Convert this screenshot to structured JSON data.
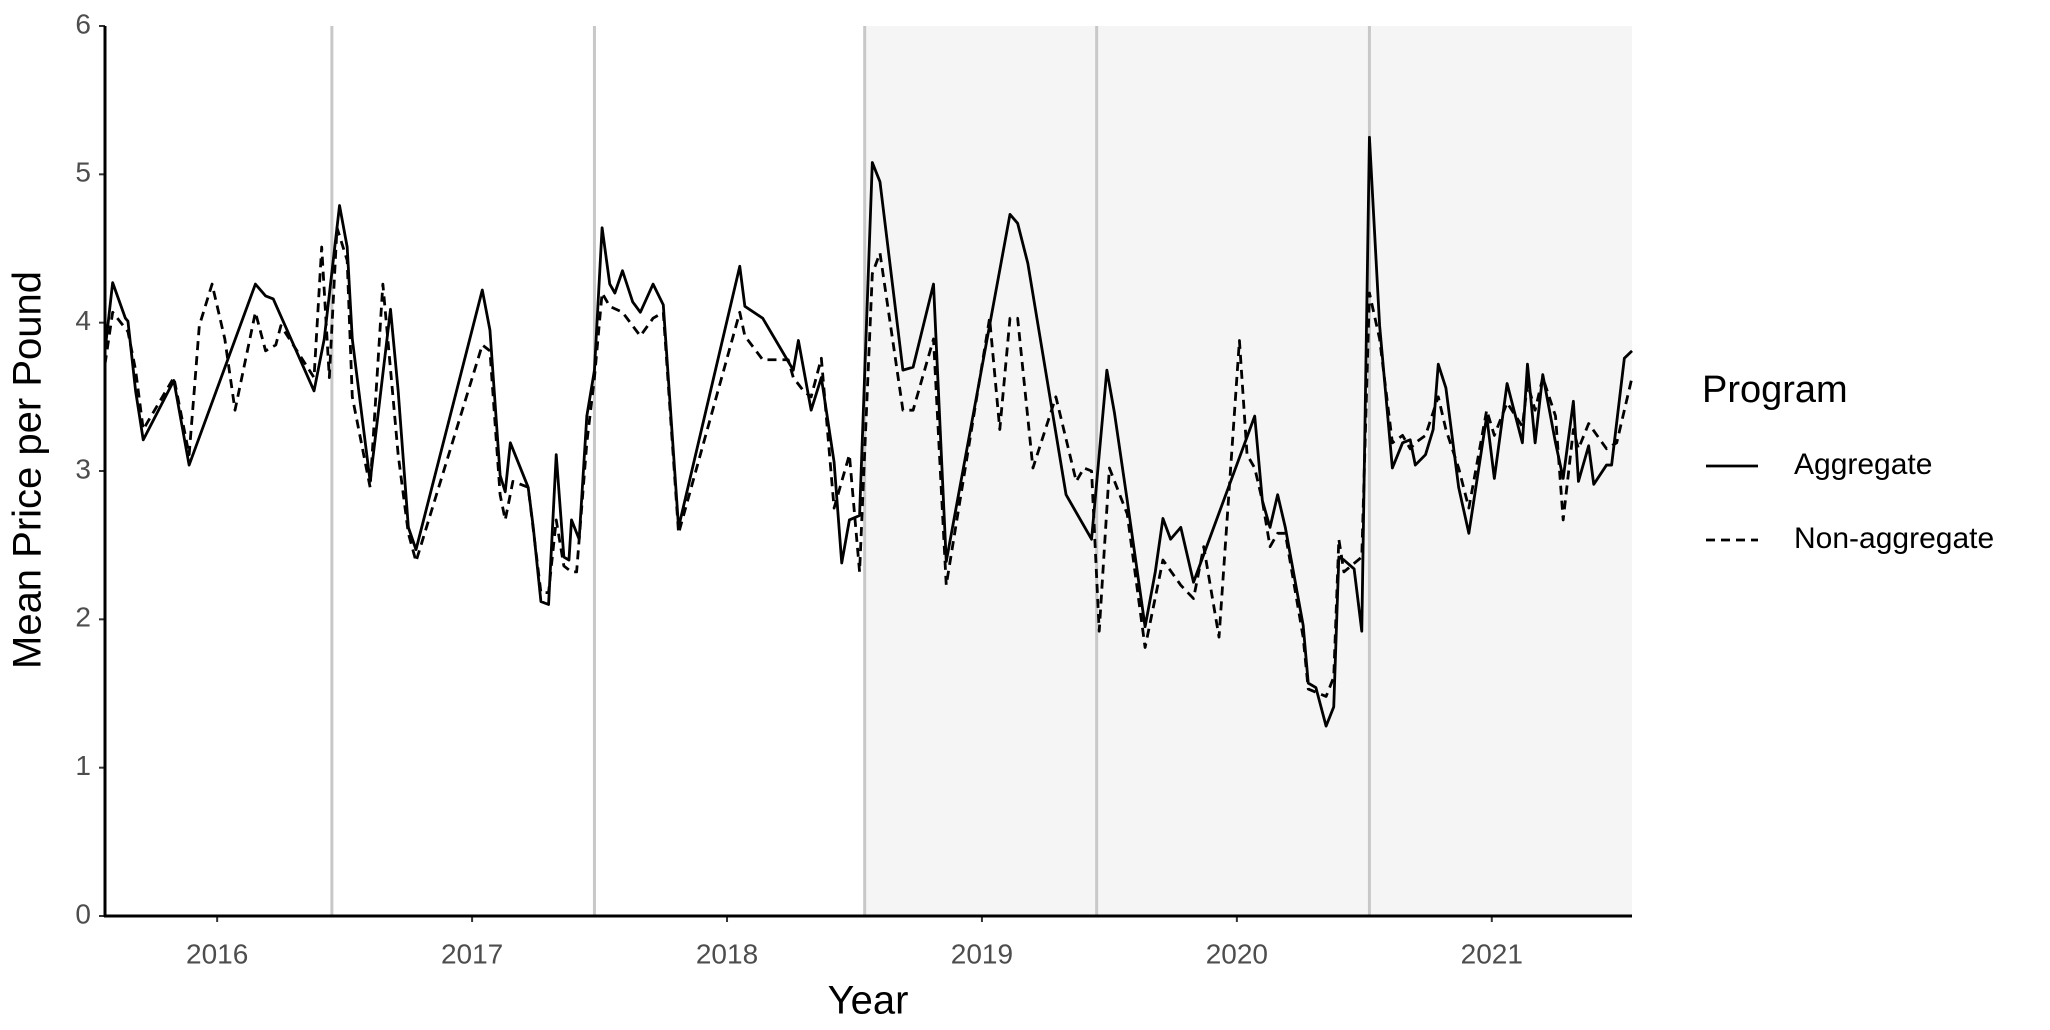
{
  "chart_data": {
    "type": "line",
    "x_label": "Year",
    "y_label": "Mean Price per Pound",
    "legend_title": "Program",
    "legend_position": "right",
    "xlim": [
      2015.56,
      2021.55
    ],
    "xticks": [
      2016,
      2017,
      2018,
      2019,
      2020,
      2021
    ],
    "ylim": [
      0,
      6
    ],
    "yticks": [
      0,
      1,
      2,
      3,
      4,
      5,
      6
    ],
    "grid": false,
    "vlines": [
      2016.45,
      2017.48,
      2018.54,
      2019.45,
      2020.52
    ],
    "vline_color": "#c8c8c8",
    "shaded_xlim": [
      2018.54,
      2021.55
    ],
    "shade_color": "#f5f5f5",
    "series": [
      {
        "name": "Aggregate",
        "color": "#000000",
        "line_style": "solid",
        "x": [
          2015.56,
          2015.59,
          2015.64,
          2015.65,
          2015.68,
          2015.71,
          2015.83,
          2015.89,
          2016.15,
          2016.19,
          2016.22,
          2016.38,
          2016.42,
          2016.48,
          2016.51,
          2016.53,
          2016.6,
          2016.68,
          2016.71,
          2016.75,
          2016.78,
          2017.04,
          2017.07,
          2017.11,
          2017.13,
          2017.15,
          2017.22,
          2017.24,
          2017.27,
          2017.3,
          2017.33,
          2017.36,
          2017.38,
          2017.39,
          2017.42,
          2017.45,
          2017.48,
          2017.51,
          2017.54,
          2017.56,
          2017.59,
          2017.63,
          2017.66,
          2017.71,
          2017.75,
          2017.81,
          2018.05,
          2018.07,
          2018.14,
          2018.26,
          2018.28,
          2018.33,
          2018.37,
          2018.42,
          2018.45,
          2018.48,
          2018.52,
          2018.57,
          2018.6,
          2018.69,
          2018.73,
          2018.81,
          2018.86,
          2019.11,
          2019.14,
          2019.18,
          2019.33,
          2019.43,
          2019.49,
          2019.52,
          2019.57,
          2019.64,
          2019.68,
          2019.71,
          2019.74,
          2019.78,
          2019.83,
          2020.07,
          2020.1,
          2020.13,
          2020.16,
          2020.19,
          2020.26,
          2020.28,
          2020.31,
          2020.35,
          2020.38,
          2020.4,
          2020.42,
          2020.46,
          2020.49,
          2020.52,
          2020.56,
          2020.61,
          2020.65,
          2020.68,
          2020.7,
          2020.74,
          2020.77,
          2020.79,
          2020.82,
          2020.87,
          2020.91,
          2020.98,
          2021.01,
          2021.06,
          2021.12,
          2021.14,
          2021.17,
          2021.2,
          2021.25,
          2021.28,
          2021.32,
          2021.34,
          2021.38,
          2021.4,
          2021.45,
          2021.47,
          2021.52,
          2021.55
        ],
        "values": [
          3.81,
          4.27,
          4.03,
          4.01,
          3.54,
          3.21,
          3.61,
          3.04,
          4.26,
          4.18,
          4.16,
          3.54,
          3.89,
          4.79,
          4.51,
          3.89,
          2.93,
          4.09,
          3.54,
          2.62,
          2.47,
          4.22,
          3.95,
          2.97,
          2.86,
          3.19,
          2.89,
          2.62,
          2.12,
          2.1,
          3.11,
          2.42,
          2.4,
          2.67,
          2.54,
          3.37,
          3.68,
          4.64,
          4.26,
          4.2,
          4.35,
          4.14,
          4.07,
          4.26,
          4.12,
          2.62,
          4.38,
          4.11,
          4.03,
          3.68,
          3.88,
          3.41,
          3.63,
          3.06,
          2.38,
          2.67,
          2.7,
          5.08,
          4.95,
          3.68,
          3.7,
          4.26,
          2.39,
          4.73,
          4.67,
          4.4,
          2.84,
          2.54,
          3.68,
          3.39,
          2.8,
          1.95,
          2.32,
          2.68,
          2.54,
          2.62,
          2.25,
          3.37,
          2.8,
          2.62,
          2.84,
          2.62,
          1.96,
          1.57,
          1.54,
          1.28,
          1.41,
          2.42,
          2.4,
          2.34,
          1.92,
          5.25,
          3.98,
          3.02,
          3.19,
          3.21,
          3.04,
          3.11,
          3.28,
          3.72,
          3.56,
          2.89,
          2.58,
          3.37,
          2.95,
          3.59,
          3.19,
          3.72,
          3.19,
          3.65,
          3.19,
          2.95,
          3.47,
          2.93,
          3.17,
          2.91,
          3.04,
          3.04,
          3.76,
          3.81
        ]
      },
      {
        "name": "Non-aggregate",
        "color": "#000000",
        "line_style": "dashed",
        "x": [
          2015.56,
          2015.59,
          2015.65,
          2015.68,
          2015.71,
          2015.83,
          2015.89,
          2015.91,
          2015.93,
          2015.98,
          2016.03,
          2016.07,
          2016.15,
          2016.19,
          2016.23,
          2016.25,
          2016.38,
          2016.41,
          2016.44,
          2016.47,
          2016.51,
          2016.53,
          2016.6,
          2016.65,
          2016.71,
          2016.75,
          2016.78,
          2017.04,
          2017.07,
          2017.11,
          2017.13,
          2017.16,
          2017.22,
          2017.27,
          2017.3,
          2017.33,
          2017.36,
          2017.39,
          2017.41,
          2017.45,
          2017.48,
          2017.51,
          2017.54,
          2017.59,
          2017.66,
          2017.71,
          2017.75,
          2017.81,
          2018.05,
          2018.07,
          2018.14,
          2018.24,
          2018.26,
          2018.3,
          2018.33,
          2018.37,
          2018.42,
          2018.48,
          2018.52,
          2018.57,
          2018.6,
          2018.69,
          2018.73,
          2018.81,
          2018.86,
          2019.03,
          2019.07,
          2019.11,
          2019.14,
          2019.2,
          2019.29,
          2019.37,
          2019.4,
          2019.43,
          2019.46,
          2019.5,
          2019.57,
          2019.64,
          2019.71,
          2019.78,
          2019.83,
          2019.87,
          2019.93,
          2020.01,
          2020.04,
          2020.07,
          2020.1,
          2020.13,
          2020.16,
          2020.19,
          2020.26,
          2020.28,
          2020.35,
          2020.38,
          2020.4,
          2020.42,
          2020.49,
          2020.52,
          2020.56,
          2020.61,
          2020.65,
          2020.68,
          2020.7,
          2020.74,
          2020.79,
          2020.82,
          2020.87,
          2020.91,
          2020.98,
          2021.01,
          2021.06,
          2021.12,
          2021.14,
          2021.17,
          2021.2,
          2021.25,
          2021.28,
          2021.32,
          2021.34,
          2021.38,
          2021.45,
          2021.49,
          2021.55
        ],
        "values": [
          3.72,
          4.07,
          3.94,
          3.68,
          3.28,
          3.63,
          3.11,
          3.54,
          3.98,
          4.26,
          3.89,
          3.41,
          4.07,
          3.81,
          3.85,
          3.98,
          3.63,
          4.51,
          3.63,
          4.64,
          4.42,
          3.5,
          2.89,
          4.26,
          3.11,
          2.58,
          2.39,
          3.85,
          3.81,
          2.84,
          2.67,
          2.93,
          2.89,
          2.18,
          2.18,
          2.67,
          2.36,
          2.32,
          2.32,
          3.19,
          3.63,
          4.2,
          4.11,
          4.07,
          3.91,
          4.03,
          4.07,
          2.58,
          4.07,
          3.91,
          3.75,
          3.75,
          3.63,
          3.54,
          3.5,
          3.76,
          2.75,
          3.11,
          2.32,
          4.33,
          4.47,
          3.41,
          3.41,
          3.89,
          2.23,
          4.03,
          3.28,
          4.03,
          4.03,
          3.02,
          3.5,
          2.93,
          3.02,
          3.0,
          1.92,
          3.02,
          2.71,
          1.81,
          2.4,
          2.23,
          2.14,
          2.49,
          1.88,
          3.88,
          3.11,
          3.02,
          2.8,
          2.49,
          2.58,
          2.58,
          1.88,
          1.53,
          1.48,
          1.61,
          2.54,
          2.32,
          2.42,
          4.2,
          3.89,
          3.19,
          3.24,
          3.15,
          3.19,
          3.24,
          3.5,
          3.28,
          3.02,
          2.75,
          3.41,
          3.24,
          3.46,
          3.3,
          3.59,
          3.41,
          3.63,
          3.37,
          2.67,
          3.28,
          3.15,
          3.32,
          3.15,
          3.19,
          3.63
        ]
      }
    ]
  }
}
